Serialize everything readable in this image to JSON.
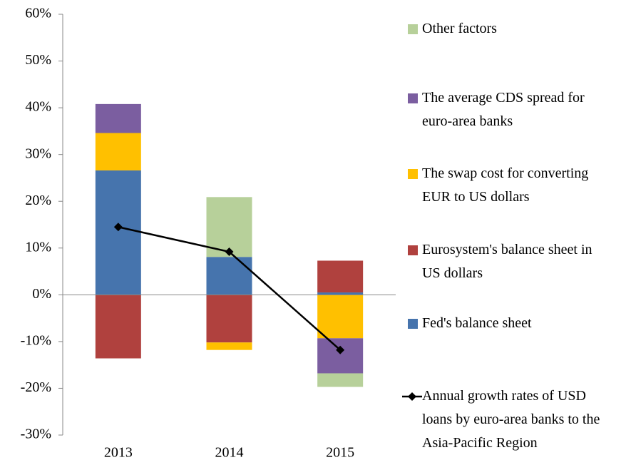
{
  "chart_data": {
    "type": "bar",
    "categories": [
      "2013",
      "2014",
      "2015"
    ],
    "series": [
      {
        "name": "Fed's balance sheet",
        "color": "#4674ad",
        "values": [
          26.6,
          8.1,
          0.5
        ]
      },
      {
        "name": "Eurosystem's balance sheet in US dollars",
        "color": "#b0413e",
        "values": [
          -13.6,
          -10.2,
          6.8
        ]
      },
      {
        "name": "The swap cost for converting EUR to US dollars",
        "color": "#ffc000",
        "values": [
          8.0,
          -1.6,
          -9.3
        ]
      },
      {
        "name": "The average CDS spread for euro-area banks",
        "color": "#7b5ea0",
        "values": [
          6.2,
          0,
          -7.5
        ]
      },
      {
        "name": "Other factors",
        "color": "#b7d09a",
        "values": [
          0,
          12.8,
          -2.9
        ]
      }
    ],
    "line": {
      "name": "Annual growth rates of USD loans by euro-area banks to the Asia-Pacific Region",
      "color": "#000000",
      "values": [
        14.5,
        9.2,
        -11.8
      ]
    },
    "ylim": [
      -30,
      60
    ],
    "yticks": [
      {
        "value": -30,
        "label": "-30%"
      },
      {
        "value": -20,
        "label": "-20%"
      },
      {
        "value": -10,
        "label": "-10%"
      },
      {
        "value": 0,
        "label": "0%"
      },
      {
        "value": 10,
        "label": "10%"
      },
      {
        "value": 20,
        "label": "20%"
      },
      {
        "value": 30,
        "label": "30%"
      },
      {
        "value": 40,
        "label": "40%"
      },
      {
        "value": 50,
        "label": "50%"
      },
      {
        "value": 60,
        "label": "60%"
      }
    ]
  }
}
